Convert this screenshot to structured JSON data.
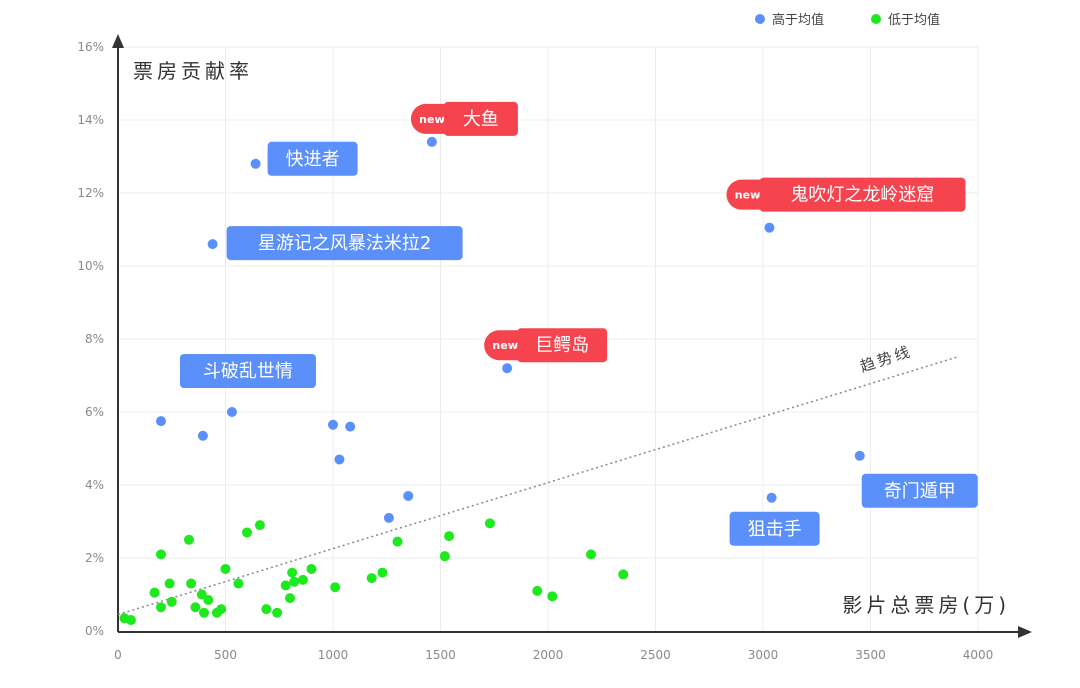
{
  "chart_data": {
    "type": "scatter",
    "xlim": [
      0,
      4000
    ],
    "ylim": [
      0,
      16
    ],
    "x_ticks": [
      "0",
      "500",
      "1000",
      "1500",
      "2000",
      "2500",
      "3000",
      "3500",
      "4000"
    ],
    "y_ticks": [
      "0%",
      "2%",
      "4%",
      "6%",
      "8%",
      "10%",
      "12%",
      "14%",
      "16%"
    ],
    "ylabel": "票房贡献率",
    "xlabel": "影片总票房(万)",
    "legend_position": "top-right",
    "grid": true,
    "series": [
      {
        "name": "高于均值",
        "color": "#5b8ff9",
        "points": [
          [
            640,
            12.8
          ],
          [
            1460,
            13.4
          ],
          [
            440,
            10.6
          ],
          [
            3030,
            11.05
          ],
          [
            1810,
            7.2
          ],
          [
            200,
            5.75
          ],
          [
            530,
            6.0
          ],
          [
            395,
            5.35
          ],
          [
            1000,
            5.65
          ],
          [
            1080,
            5.6
          ],
          [
            1030,
            4.7
          ],
          [
            3450,
            4.8
          ],
          [
            1350,
            3.7
          ],
          [
            3040,
            3.65
          ],
          [
            1260,
            3.1
          ]
        ]
      },
      {
        "name": "低于均值",
        "color": "#1ee81e",
        "points": [
          [
            30,
            0.35
          ],
          [
            60,
            0.3
          ],
          [
            170,
            1.05
          ],
          [
            200,
            2.1
          ],
          [
            200,
            0.65
          ],
          [
            240,
            1.3
          ],
          [
            250,
            0.8
          ],
          [
            330,
            2.5
          ],
          [
            340,
            1.3
          ],
          [
            360,
            0.65
          ],
          [
            390,
            1.0
          ],
          [
            400,
            0.5
          ],
          [
            420,
            0.85
          ],
          [
            460,
            0.5
          ],
          [
            480,
            0.6
          ],
          [
            500,
            1.7
          ],
          [
            560,
            1.3
          ],
          [
            600,
            2.7
          ],
          [
            660,
            2.9
          ],
          [
            690,
            0.6
          ],
          [
            740,
            0.5
          ],
          [
            780,
            1.25
          ],
          [
            800,
            0.9
          ],
          [
            810,
            1.6
          ],
          [
            820,
            1.35
          ],
          [
            860,
            1.4
          ],
          [
            900,
            1.7
          ],
          [
            1010,
            1.2
          ],
          [
            1180,
            1.45
          ],
          [
            1230,
            1.6
          ],
          [
            1300,
            2.45
          ],
          [
            1520,
            2.05
          ],
          [
            1540,
            2.6
          ],
          [
            1730,
            2.95
          ],
          [
            1950,
            1.1
          ],
          [
            2020,
            0.95
          ],
          [
            2200,
            2.1
          ],
          [
            2350,
            1.55
          ]
        ]
      }
    ],
    "trend_line": {
      "label": "趋势线",
      "from": [
        0,
        0.45
      ],
      "to": [
        3900,
        7.5
      ]
    },
    "annotations": [
      {
        "text": "大鱼",
        "style": "red",
        "new_badge": "new",
        "x": 1460,
        "y": 13.4
      },
      {
        "text": "鬼吹灯之龙岭迷窟",
        "style": "red",
        "new_badge": "new",
        "x": 3030,
        "y": 11.05
      },
      {
        "text": "巨鳄岛",
        "style": "red",
        "new_badge": "new",
        "x": 1810,
        "y": 7.2
      },
      {
        "text": "快进者",
        "style": "blue",
        "x": 640,
        "y": 12.8
      },
      {
        "text": "星游记之风暴法米拉2",
        "style": "blue",
        "x": 440,
        "y": 10.6
      },
      {
        "text": "斗破乱世情",
        "style": "blue",
        "x": 530,
        "y": 6.0
      },
      {
        "text": "奇门遁甲",
        "style": "blue",
        "x": 3450,
        "y": 4.8
      },
      {
        "text": "狙击手",
        "style": "blue",
        "x": 3040,
        "y": 3.65
      }
    ],
    "colors": {
      "above_mean": "#5b8ff9",
      "below_mean": "#1ee81e",
      "callout_blue": "#5b8ff9",
      "callout_red": "#f5444e"
    }
  }
}
